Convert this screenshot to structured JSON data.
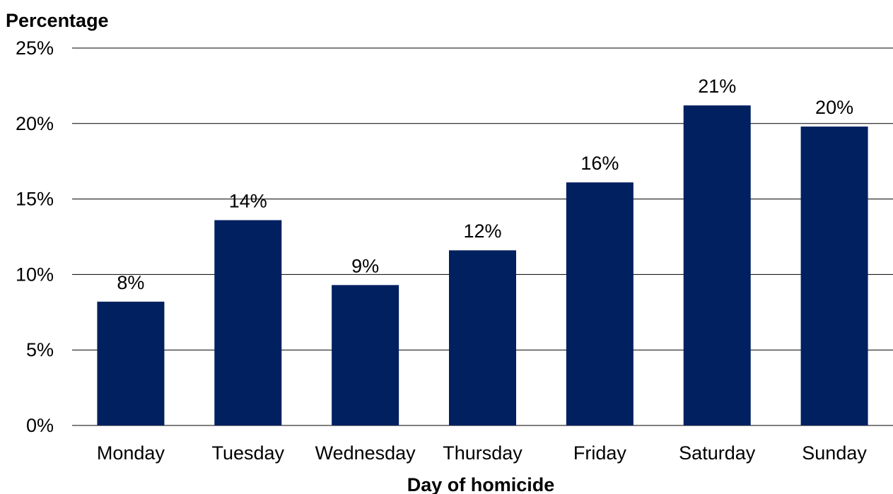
{
  "chart_data": {
    "type": "bar",
    "title": "",
    "xlabel": "Day of homicide",
    "ylabel": "Percentage",
    "categories": [
      "Monday",
      "Tuesday",
      "Wednesday",
      "Thursday",
      "Friday",
      "Saturday",
      "Sunday"
    ],
    "values": [
      8.2,
      13.6,
      9.3,
      11.6,
      16.1,
      21.2,
      19.8
    ],
    "data_labels": [
      "8%",
      "14%",
      "9%",
      "12%",
      "16%",
      "21%",
      "20%"
    ],
    "ylim": [
      0,
      25
    ],
    "yticks": [
      0,
      5,
      10,
      15,
      20,
      25
    ],
    "ytick_labels": [
      "0%",
      "5%",
      "10%",
      "15%",
      "20%",
      "25%"
    ],
    "grid": true,
    "legend": "none",
    "bar_color": "#002060"
  }
}
